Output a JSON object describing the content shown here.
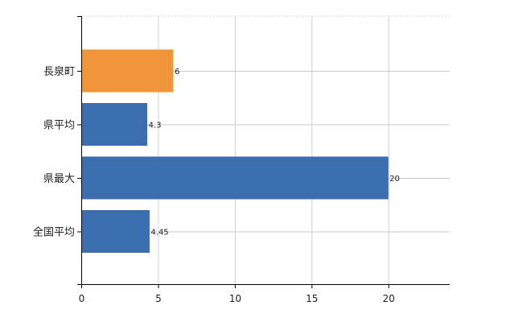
{
  "chart_data": {
    "type": "bar",
    "orientation": "horizontal",
    "categories": [
      "長泉町",
      "県平均",
      "県最大",
      "全国平均"
    ],
    "values": [
      6,
      4.3,
      20,
      4.45
    ],
    "value_labels": [
      "6",
      "4.3",
      "20",
      "4.45"
    ],
    "xlim": [
      0,
      24
    ],
    "xticks": [
      0,
      5,
      10,
      15,
      20
    ],
    "grid": true,
    "legend": "none",
    "colors": {
      "highlight": "#F0963A",
      "default": "#3A6EAE"
    },
    "highlight_index": 0
  }
}
